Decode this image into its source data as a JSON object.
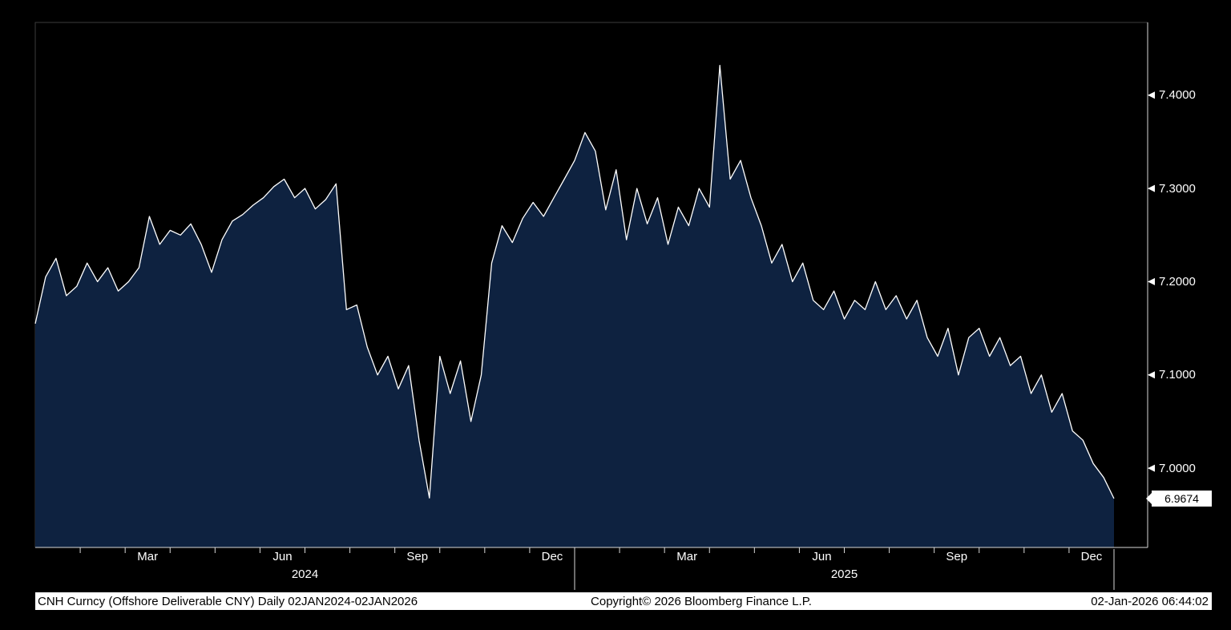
{
  "chart_data": {
    "type": "area",
    "title": "CNH Curncy (Offshore Deliverable CNY) Daily 02JAN2024-02JAN2026",
    "xlabel": "",
    "ylabel": "",
    "x_start": "02JAN2024",
    "x_end": "02JAN2026",
    "ylim": [
      6.915,
      7.478
    ],
    "grid": false,
    "legend": false,
    "y_ticks": [
      {
        "v": 7.0,
        "label": "7.0000"
      },
      {
        "v": 7.1,
        "label": "7.1000"
      },
      {
        "v": 7.2,
        "label": "7.2000"
      },
      {
        "v": 7.3,
        "label": "7.3000"
      },
      {
        "v": 7.4,
        "label": "7.4000"
      }
    ],
    "x_month_ticks": [
      {
        "label": "Mar",
        "m": 2.5
      },
      {
        "label": "Jun",
        "m": 5.5
      },
      {
        "label": "Sep",
        "m": 8.5
      },
      {
        "label": "Dec",
        "m": 11.5
      },
      {
        "label": "Mar",
        "m": 14.5
      },
      {
        "label": "Jun",
        "m": 17.5
      },
      {
        "label": "Sep",
        "m": 20.5
      },
      {
        "label": "Dec",
        "m": 23.5
      }
    ],
    "x_year_labels": [
      {
        "label": "2024",
        "m": 6
      },
      {
        "label": "2025",
        "m": 18
      }
    ],
    "last_price": "6.9674",
    "last_price_value": 6.9674,
    "series": [
      {
        "name": "CNH Curncy",
        "values": [
          7.155,
          7.205,
          7.225,
          7.185,
          7.195,
          7.22,
          7.2,
          7.215,
          7.19,
          7.2,
          7.215,
          7.27,
          7.24,
          7.255,
          7.25,
          7.262,
          7.24,
          7.21,
          7.245,
          7.265,
          7.272,
          7.282,
          7.29,
          7.302,
          7.31,
          7.29,
          7.3,
          7.278,
          7.288,
          7.305,
          7.17,
          7.175,
          7.13,
          7.1,
          7.12,
          7.085,
          7.11,
          7.03,
          6.968,
          7.12,
          7.08,
          7.115,
          7.05,
          7.1,
          7.22,
          7.26,
          7.242,
          7.268,
          7.285,
          7.27,
          7.29,
          7.31,
          7.33,
          7.36,
          7.34,
          7.277,
          7.32,
          7.245,
          7.3,
          7.262,
          7.29,
          7.24,
          7.28,
          7.26,
          7.3,
          7.28,
          7.432,
          7.31,
          7.33,
          7.29,
          7.26,
          7.22,
          7.24,
          7.2,
          7.22,
          7.18,
          7.17,
          7.19,
          7.16,
          7.18,
          7.17,
          7.2,
          7.17,
          7.185,
          7.16,
          7.18,
          7.14,
          7.12,
          7.15,
          7.1,
          7.14,
          7.15,
          7.12,
          7.14,
          7.11,
          7.12,
          7.08,
          7.1,
          7.06,
          7.08,
          7.04,
          7.03,
          7.005,
          6.99,
          6.9674
        ]
      }
    ],
    "colors": {
      "background": "#000000",
      "line": "#ffffff",
      "area_fill": "#0e2240",
      "axis_line": "#d9d9d9",
      "plot_border": "#3c3c3c",
      "axis_text": "#ffffff",
      "last_price_bg": "#ffffff",
      "last_price_text": "#000000",
      "footer_bg": "#ffffff",
      "footer_text": "#000000"
    }
  },
  "footer": {
    "left": "CNH Curncy (Offshore Deliverable CNY) Daily 02JAN2024-02JAN2026",
    "center": "Copyright© 2026 Bloomberg Finance L.P.",
    "right": "02-Jan-2026 06:44:02"
  }
}
